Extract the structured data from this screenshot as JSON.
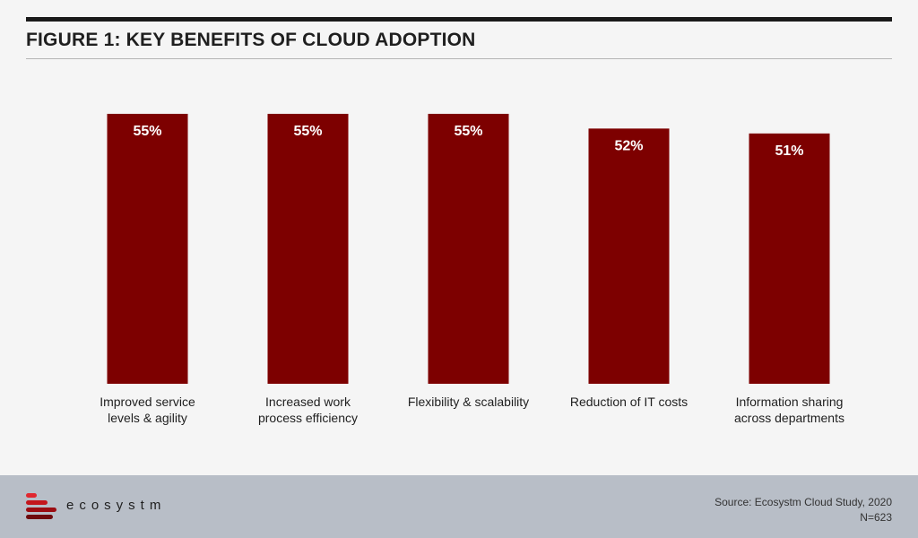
{
  "title": "FIGURE 1: KEY BENEFITS OF CLOUD ADOPTION",
  "chart_data": {
    "type": "bar",
    "categories": [
      [
        "Improved service",
        "levels & agility"
      ],
      [
        "Increased work",
        "process efficiency"
      ],
      [
        "Flexibility & scalability"
      ],
      [
        "Reduction of IT costs"
      ],
      [
        "Information sharing",
        "across departments"
      ]
    ],
    "values": [
      55,
      55,
      55,
      52,
      51
    ],
    "labels": [
      "55%",
      "55%",
      "55%",
      "52%",
      "51%"
    ],
    "ylim": [
      0,
      57
    ],
    "bar_color": "#7d0000",
    "grid": false
  },
  "footer": {
    "brand": "ecosystm",
    "source": "Source: Ecosystm Cloud Study, 2020",
    "n": "N=623"
  },
  "colors": {
    "logo": [
      "#e0282f",
      "#c4161c",
      "#9b0d12",
      "#6e0a0d"
    ]
  }
}
